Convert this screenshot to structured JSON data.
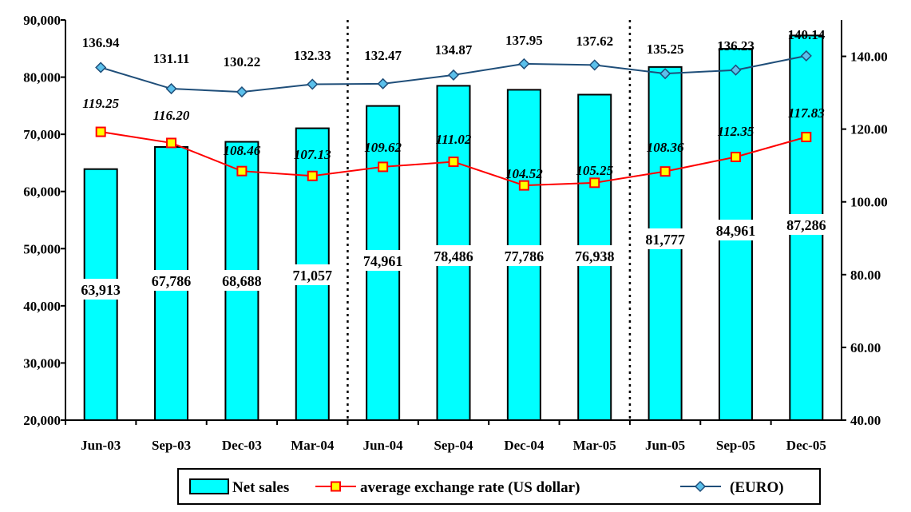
{
  "chart_data": {
    "type": "bar",
    "categories": [
      "Jun-03",
      "Sep-03",
      "Dec-03",
      "Mar-04",
      "Jun-04",
      "Sep-04",
      "Dec-04",
      "Mar-05",
      "Jun-05",
      "Sep-05",
      "Dec-05"
    ],
    "y_left_ticks": [
      "20,000",
      "30,000",
      "40,000",
      "50,000",
      "60,000",
      "70,000",
      "80,000",
      "90,000"
    ],
    "y_right_ticks": [
      "40.00",
      "60.00",
      "80.00",
      "100.00",
      "120.00",
      "140.00"
    ],
    "ylim_left": [
      20000,
      90000
    ],
    "ylim_right": [
      40,
      150
    ],
    "grid": false,
    "legend_position": "bottom-center",
    "dividers_after": [
      "Mar-04",
      "Mar-05"
    ],
    "series": [
      {
        "name": "Net sales",
        "type": "bar",
        "axis": "left",
        "color": "#00FFFF",
        "values": [
          63913,
          67786,
          68688,
          71057,
          74961,
          78486,
          77786,
          76938,
          81777,
          84961,
          87286
        ],
        "labels": [
          "63,913",
          "67,786",
          "68,688",
          "71,057",
          "74,961",
          "78,486",
          "77,786",
          "76,938",
          "81,777",
          "84,961",
          "87,286"
        ]
      },
      {
        "name": "average exchange rate (US dollar)",
        "type": "line",
        "axis": "right",
        "color": "#FF0000",
        "marker_fill": "#FFFF00",
        "values": [
          119.25,
          116.2,
          108.46,
          107.13,
          109.62,
          111.02,
          104.52,
          105.25,
          108.36,
          112.35,
          117.83
        ],
        "labels": [
          "119.25",
          "116.20",
          "108.46",
          "107.13",
          "109.62",
          "111.02",
          "104.52",
          "105.25",
          "108.36",
          "112.35",
          "117.83"
        ]
      },
      {
        "name": "(EURO)",
        "type": "line",
        "axis": "right",
        "color": "#1F4E79",
        "marker_fill": "#5BC0EB",
        "values": [
          136.94,
          131.11,
          130.22,
          132.33,
          132.47,
          134.87,
          137.95,
          137.62,
          135.25,
          136.23,
          140.14
        ],
        "labels": [
          "136.94",
          "131.11",
          "130.22",
          "132.33",
          "132.47",
          "134.87",
          "137.95",
          "137.62",
          "135.25",
          "136.23",
          "140.14"
        ]
      }
    ]
  }
}
